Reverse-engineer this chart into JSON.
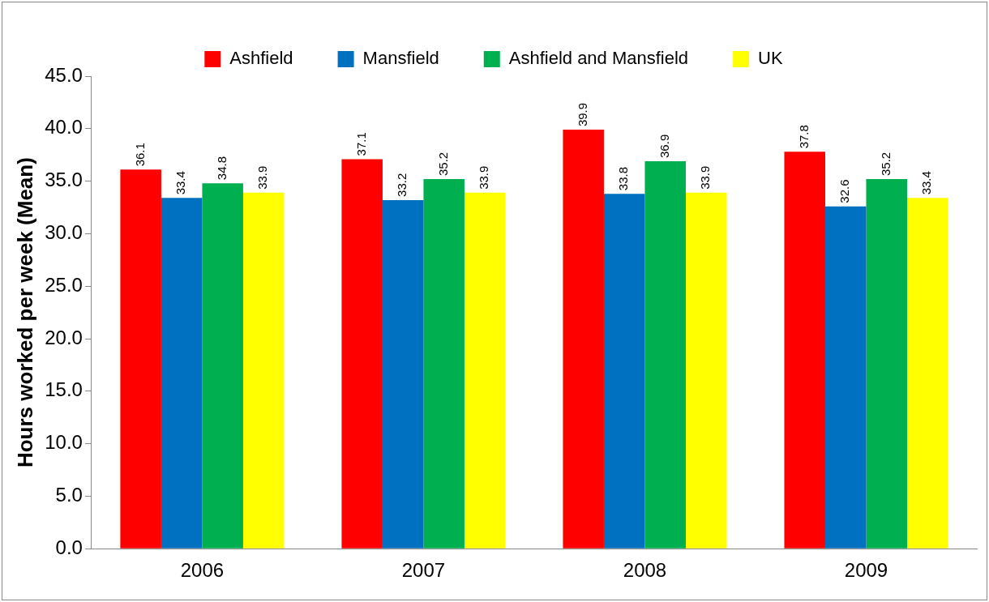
{
  "chart_data": {
    "type": "bar",
    "ylabel": "Hours worked per week (Mean)",
    "categories": [
      "2006",
      "2007",
      "2008",
      "2009"
    ],
    "series": [
      {
        "name": "Ashfield",
        "color": "#ff0000",
        "values": [
          36.1,
          37.1,
          39.9,
          37.8
        ]
      },
      {
        "name": "Mansfield",
        "color": "#0070c0",
        "values": [
          33.4,
          33.2,
          33.8,
          32.6
        ]
      },
      {
        "name": "Ashfield and Mansfield",
        "color": "#00b050",
        "values": [
          34.8,
          35.2,
          36.9,
          35.2
        ]
      },
      {
        "name": "UK",
        "color": "#ffff00",
        "values": [
          33.9,
          33.9,
          33.9,
          33.4
        ]
      }
    ],
    "ylim": [
      0,
      45
    ],
    "yticks": [
      {
        "value": 0,
        "label": "0.0"
      },
      {
        "value": 5,
        "label": "5.0"
      },
      {
        "value": 10,
        "label": "10.0"
      },
      {
        "value": 15,
        "label": "15.0"
      },
      {
        "value": 20,
        "label": "20.0"
      },
      {
        "value": 25,
        "label": "25.0"
      },
      {
        "value": 30,
        "label": "30.0"
      },
      {
        "value": 35,
        "label": "35.0"
      },
      {
        "value": 40,
        "label": "40.0"
      },
      {
        "value": 45,
        "label": "45.0"
      }
    ],
    "grid": false,
    "legend": "top",
    "data_labels": true
  }
}
